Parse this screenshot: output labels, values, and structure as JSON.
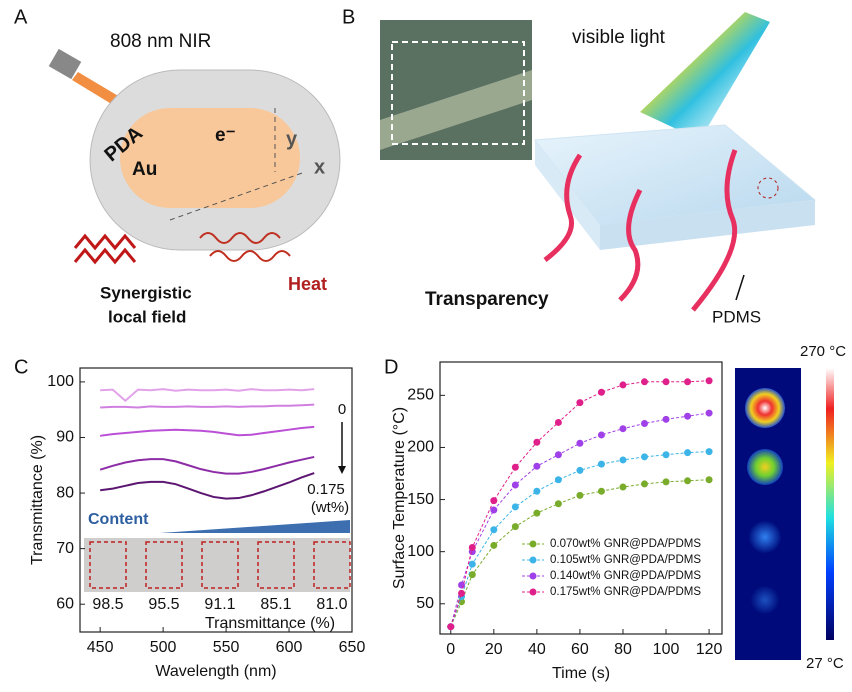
{
  "panel_a": {
    "letter": "A",
    "laser": "808 nm NIR",
    "electron": "e⁻",
    "shell": "PDA",
    "core": "Au",
    "y_axis": "y",
    "x_axis": "x",
    "field_line1": "Synergistic",
    "field_line2": "local field",
    "heat": "Heat"
  },
  "panel_b": {
    "letter": "B",
    "light": "visible light",
    "transparency": "Transparency",
    "material": "PDMS"
  },
  "panel_c": {
    "letter": "C"
  },
  "panel_d": {
    "letter": "D",
    "colorbar_max": "270 °C",
    "colorbar_min": "27 °C"
  },
  "chart_data": [
    {
      "type": "line",
      "xlabel": "Wavelength (nm)",
      "ylabel": "Transmittance (%)",
      "xlim": [
        434,
        650
      ],
      "ylim": [
        55,
        102.5
      ],
      "xticks": [
        450,
        500,
        550,
        600,
        650
      ],
      "yticks": [
        60,
        70,
        80,
        90,
        100
      ],
      "x": [
        450,
        460,
        470,
        480,
        490,
        500,
        510,
        520,
        530,
        540,
        550,
        560,
        570,
        580,
        590,
        600,
        610,
        620
      ],
      "series": [
        {
          "color": "#e2a2ea",
          "values": [
            98.5,
            98.6,
            96.6,
            98.6,
            98.5,
            98.7,
            98.4,
            98.6,
            98.5,
            98.5,
            98.6,
            98.4,
            98.7,
            98.5,
            98.5,
            98.6,
            98.5,
            98.7
          ]
        },
        {
          "color": "#d080e0",
          "values": [
            95.4,
            95.5,
            95.5,
            95.4,
            95.6,
            95.5,
            95.5,
            95.6,
            95.5,
            95.5,
            95.6,
            95.5,
            95.6,
            95.6,
            95.7,
            95.7,
            95.8,
            95.9
          ]
        },
        {
          "color": "#bb4fd6",
          "values": [
            90.3,
            90.6,
            90.8,
            91.0,
            91.2,
            91.3,
            91.4,
            91.3,
            91.2,
            91.0,
            90.7,
            90.4,
            90.5,
            90.8,
            91.1,
            91.4,
            91.7,
            91.9
          ]
        },
        {
          "color": "#8c2ca6",
          "values": [
            84.2,
            84.9,
            85.5,
            85.9,
            86.1,
            86.1,
            85.7,
            85.0,
            84.3,
            83.8,
            83.5,
            83.5,
            83.8,
            84.3,
            84.9,
            85.5,
            86.0,
            86.5
          ]
        },
        {
          "color": "#5c1672",
          "values": [
            80.5,
            80.8,
            81.3,
            81.8,
            82.0,
            82.0,
            81.6,
            80.8,
            80.0,
            79.3,
            79.0,
            79.1,
            79.6,
            80.3,
            81.1,
            81.9,
            82.8,
            83.6
          ]
        }
      ],
      "annotation_top": "0",
      "annotation_bottom": "0.175",
      "annotation_unit": "(wt%)",
      "inset_title": "Content",
      "inset_labels": [
        "98.5",
        "95.5",
        "91.1",
        "85.1",
        "81.0"
      ],
      "inset_axis": "Transmittance (%)"
    },
    {
      "type": "line",
      "markers": true,
      "xlabel": "Time (s)",
      "ylabel": "Surface Temperature (°C)",
      "xlim": [
        -5,
        126
      ],
      "ylim": [
        21,
        282
      ],
      "xticks": [
        0,
        20,
        40,
        60,
        80,
        100,
        120
      ],
      "yticks": [
        50,
        100,
        150,
        200,
        250
      ],
      "x": [
        0,
        5,
        10,
        20,
        30,
        40,
        50,
        60,
        70,
        80,
        90,
        100,
        110,
        120
      ],
      "legend": "lower right",
      "series": [
        {
          "name": "0.070wt% GNR@PDA/PDMS",
          "color": "#7aac2c",
          "values": [
            28,
            52,
            78,
            106,
            124,
            137,
            146,
            154,
            158,
            162,
            165,
            167,
            168,
            169
          ]
        },
        {
          "name": "0.105wt% GNR@PDA/PDMS",
          "color": "#3cb4e8",
          "values": [
            28,
            57,
            88,
            121,
            143,
            158,
            169,
            178,
            184,
            188,
            191,
            193,
            195,
            196
          ]
        },
        {
          "name": "0.140wt% GNR@PDA/PDMS",
          "color": "#a040e8",
          "values": [
            28,
            68,
            100,
            140,
            164,
            182,
            193,
            204,
            212,
            218,
            223,
            227,
            230,
            233
          ]
        },
        {
          "name": "0.175wt% GNR@PDA/PDMS",
          "color": "#e0208a",
          "values": [
            28,
            60,
            104,
            149,
            181,
            205,
            224,
            243,
            253,
            260,
            263,
            263,
            263,
            264
          ]
        }
      ]
    }
  ]
}
